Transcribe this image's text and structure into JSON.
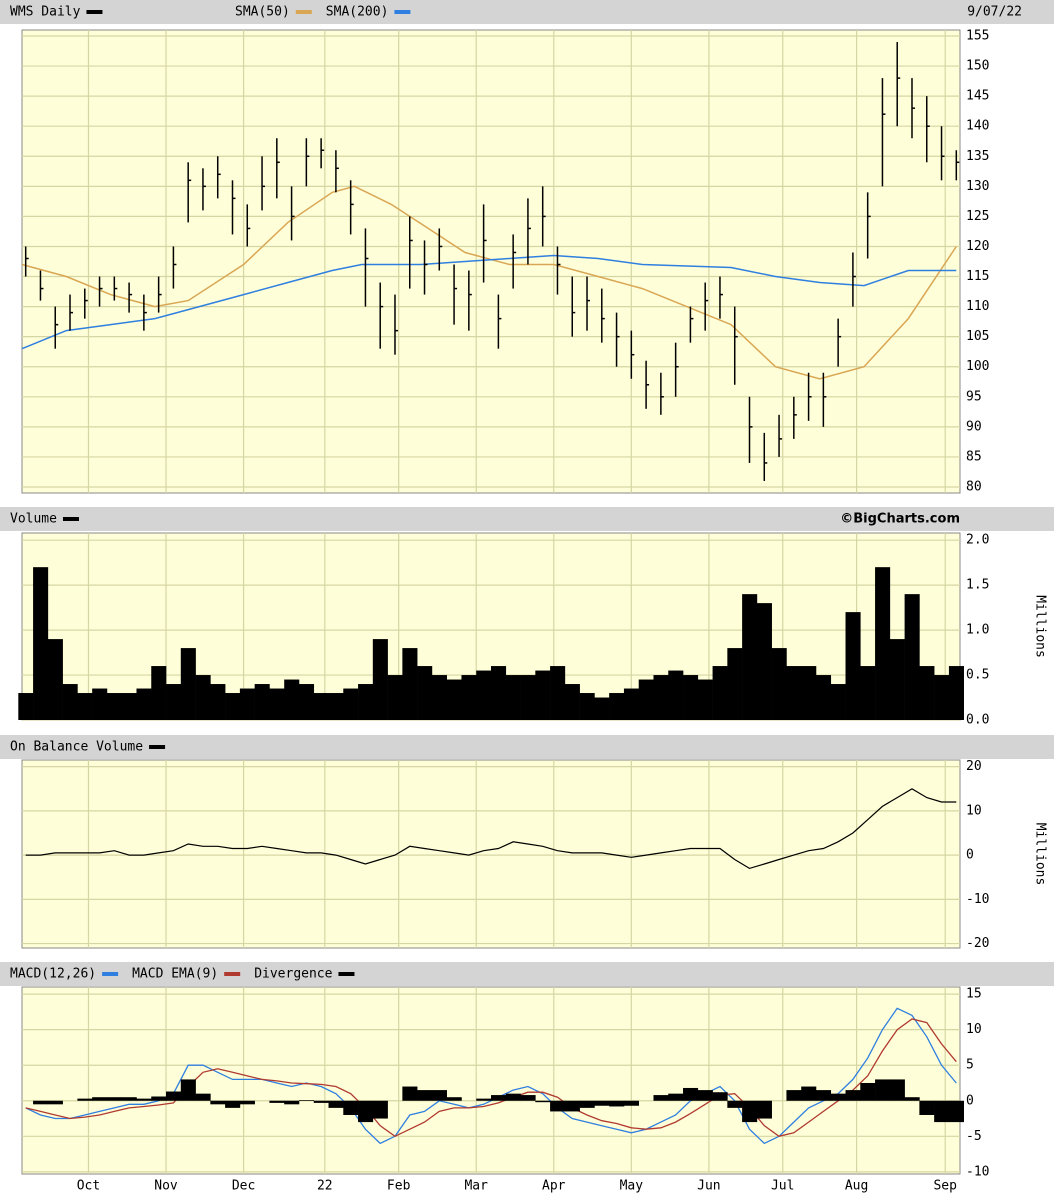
{
  "chart_data": [
    {
      "type": "ohlc",
      "title": "WMS Daily",
      "color": "#000000",
      "date": "9/07/22",
      "xlim": [
        0,
        254
      ],
      "xticks": [
        {
          "value": 18,
          "label": "Oct"
        },
        {
          "value": 39,
          "label": "Nov"
        },
        {
          "value": 60,
          "label": "Dec"
        },
        {
          "value": 82,
          "label": "22"
        },
        {
          "value": 102,
          "label": "Feb"
        },
        {
          "value": 123,
          "label": "Mar"
        },
        {
          "value": 144,
          "label": "Apr"
        },
        {
          "value": 165,
          "label": "May"
        },
        {
          "value": 186,
          "label": "Jun"
        },
        {
          "value": 206,
          "label": "Jul"
        },
        {
          "value": 226,
          "label": "Aug"
        },
        {
          "value": 250,
          "label": "Sep"
        }
      ],
      "ylim": [
        79,
        156
      ],
      "yticks": [
        80,
        85,
        90,
        95,
        100,
        105,
        110,
        115,
        120,
        125,
        130,
        135,
        140,
        145,
        150,
        155
      ],
      "x": [
        1,
        5,
        9,
        13,
        17,
        21,
        25,
        29,
        33,
        37,
        41,
        45,
        49,
        53,
        57,
        61,
        65,
        69,
        73,
        77,
        81,
        85,
        89,
        93,
        97,
        101,
        105,
        109,
        113,
        117,
        121,
        125,
        129,
        133,
        137,
        141,
        145,
        149,
        153,
        157,
        161,
        165,
        169,
        173,
        177,
        181,
        185,
        189,
        193,
        197,
        201,
        205,
        209,
        213,
        217,
        221,
        225,
        229,
        233,
        237,
        241,
        245,
        249,
        253
      ],
      "high": [
        120,
        116,
        110,
        112,
        113,
        115,
        115,
        114,
        112,
        115,
        120,
        134,
        133,
        135,
        131,
        127,
        135,
        138,
        130,
        138,
        138,
        136,
        131,
        123,
        114,
        112,
        125,
        121,
        123,
        117,
        116,
        127,
        112,
        122,
        128,
        130,
        120,
        115,
        115,
        113,
        109,
        106,
        101,
        99,
        104,
        110,
        114,
        115,
        110,
        95,
        89,
        92,
        95,
        99,
        99,
        108,
        119,
        129,
        148,
        154,
        148,
        145,
        140,
        136
      ],
      "low": [
        115,
        111,
        103,
        106,
        108,
        110,
        111,
        109,
        106,
        109,
        113,
        124,
        126,
        128,
        122,
        120,
        126,
        128,
        121,
        130,
        133,
        129,
        122,
        110,
        103,
        102,
        113,
        112,
        116,
        107,
        106,
        114,
        103,
        113,
        117,
        120,
        112,
        105,
        106,
        104,
        100,
        98,
        93,
        92,
        95,
        104,
        106,
        108,
        97,
        84,
        81,
        85,
        88,
        91,
        90,
        100,
        110,
        118,
        130,
        140,
        138,
        134,
        131,
        131
      ],
      "close": [
        118,
        113,
        107,
        109,
        111,
        113,
        113,
        112,
        109,
        112,
        117,
        131,
        130,
        132,
        128,
        123,
        130,
        134,
        125,
        135,
        136,
        133,
        127,
        118,
        110,
        106,
        121,
        117,
        120,
        113,
        112,
        121,
        108,
        119,
        123,
        125,
        117,
        109,
        111,
        108,
        105,
        102,
        97,
        95,
        100,
        108,
        111,
        112,
        105,
        90,
        84,
        88,
        92,
        95,
        95,
        105,
        115,
        125,
        142,
        148,
        143,
        140,
        135,
        134
      ],
      "series": [
        {
          "name": "SMA(50)",
          "color": "#d9a654",
          "x": [
            0,
            12,
            24,
            36,
            45,
            60,
            72,
            84,
            90,
            100,
            110,
            120,
            132,
            144,
            156,
            168,
            180,
            192,
            204,
            216,
            228,
            240,
            253
          ],
          "values": [
            117,
            115,
            112,
            110,
            111,
            117,
            124,
            129,
            130,
            127,
            123,
            119,
            117,
            117,
            115,
            113,
            110,
            107,
            100,
            98,
            100,
            108,
            120
          ]
        },
        {
          "name": "SMA(200)",
          "color": "#2f7fe0",
          "x": [
            0,
            12,
            24,
            36,
            48,
            60,
            72,
            84,
            92,
            108,
            132,
            144,
            156,
            168,
            192,
            204,
            216,
            228,
            240,
            253
          ],
          "values": [
            103,
            106,
            107,
            108,
            110,
            112,
            114,
            116,
            117,
            117,
            118,
            118.5,
            118,
            117,
            116.5,
            115,
            114,
            113.5,
            116,
            116
          ]
        }
      ]
    },
    {
      "type": "volume",
      "title": "Volume",
      "color": "#000000",
      "credit": "©BigCharts.com",
      "y_label": "Millions",
      "ylim": [
        0,
        2.08
      ],
      "yticks": [
        {
          "value": 0,
          "label": "0.0"
        },
        0.5,
        {
          "value": 1,
          "label": "1.0"
        },
        1.5,
        {
          "value": 2,
          "label": "2.0"
        }
      ],
      "x": [
        1,
        5,
        9,
        13,
        17,
        21,
        25,
        29,
        33,
        37,
        41,
        45,
        49,
        53,
        57,
        61,
        65,
        69,
        73,
        77,
        81,
        85,
        89,
        93,
        97,
        101,
        105,
        109,
        113,
        117,
        121,
        125,
        129,
        133,
        137,
        141,
        145,
        149,
        153,
        157,
        161,
        165,
        169,
        173,
        177,
        181,
        185,
        189,
        193,
        197,
        201,
        205,
        209,
        213,
        217,
        221,
        225,
        229,
        233,
        237,
        241,
        245,
        249,
        253
      ],
      "values": [
        0.3,
        1.7,
        0.9,
        0.4,
        0.3,
        0.35,
        0.3,
        0.3,
        0.35,
        0.6,
        0.4,
        0.8,
        0.5,
        0.4,
        0.3,
        0.35,
        0.4,
        0.35,
        0.45,
        0.4,
        0.3,
        0.3,
        0.35,
        0.4,
        0.9,
        0.5,
        0.8,
        0.6,
        0.5,
        0.45,
        0.5,
        0.55,
        0.6,
        0.5,
        0.5,
        0.55,
        0.6,
        0.4,
        0.3,
        0.25,
        0.3,
        0.35,
        0.45,
        0.5,
        0.55,
        0.5,
        0.45,
        0.6,
        0.8,
        1.4,
        1.3,
        0.8,
        0.6,
        0.6,
        0.5,
        0.4,
        1.2,
        0.6,
        1.7,
        0.9,
        1.4,
        0.6,
        0.5,
        0.6
      ]
    },
    {
      "type": "line",
      "title": "On Balance Volume",
      "color": "#000000",
      "y_label": "Millions",
      "ylim": [
        -21,
        21.5
      ],
      "yticks": [
        -20,
        -10,
        0,
        10,
        20
      ],
      "x": [
        1,
        5,
        9,
        13,
        17,
        21,
        25,
        29,
        33,
        37,
        41,
        45,
        49,
        53,
        57,
        61,
        65,
        69,
        73,
        77,
        81,
        85,
        89,
        93,
        97,
        101,
        105,
        109,
        113,
        117,
        121,
        125,
        129,
        133,
        137,
        141,
        145,
        149,
        153,
        157,
        161,
        165,
        169,
        173,
        177,
        181,
        185,
        189,
        193,
        197,
        201,
        205,
        209,
        213,
        217,
        221,
        225,
        229,
        233,
        237,
        241,
        245,
        249,
        253
      ],
      "values": [
        0,
        0,
        0.5,
        0.5,
        0.5,
        0.5,
        1,
        0,
        0,
        0.5,
        1,
        2.5,
        2,
        2,
        1.5,
        1.5,
        2,
        1.5,
        1,
        0.5,
        0.5,
        0,
        -1,
        -2,
        -1,
        0,
        2,
        1.5,
        1,
        0.5,
        0,
        1,
        1.5,
        3,
        2.5,
        2,
        1,
        0.5,
        0.5,
        0.5,
        0,
        -0.5,
        0,
        0.5,
        1,
        1.5,
        1.5,
        1.5,
        -1,
        -3,
        -2,
        -1,
        0,
        1,
        1.5,
        3,
        5,
        8,
        11,
        13,
        15,
        13,
        12,
        12
      ]
    },
    {
      "type": "macd",
      "title": "MACD(12,26)",
      "ylim": [
        -10.3,
        16
      ],
      "yticks": [
        -10,
        -5,
        0,
        5,
        10,
        15
      ],
      "x": [
        1,
        5,
        9,
        13,
        17,
        21,
        25,
        29,
        33,
        37,
        41,
        45,
        49,
        53,
        57,
        61,
        65,
        69,
        73,
        77,
        81,
        85,
        89,
        93,
        97,
        101,
        105,
        109,
        113,
        117,
        121,
        125,
        129,
        133,
        137,
        141,
        145,
        149,
        153,
        157,
        161,
        165,
        169,
        173,
        177,
        181,
        185,
        189,
        193,
        197,
        201,
        205,
        209,
        213,
        217,
        221,
        225,
        229,
        233,
        237,
        241,
        245,
        249,
        253
      ],
      "series": [
        {
          "name": "MACD(12,26)",
          "color": "#2f7fe0",
          "values": [
            -1,
            -2,
            -2.5,
            -2.5,
            -2,
            -1.5,
            -1,
            -0.5,
            -0.5,
            0,
            1,
            5,
            5,
            4,
            3,
            3,
            3,
            2.5,
            2,
            2.5,
            2,
            1,
            -1,
            -4,
            -6,
            -5,
            -2,
            -1.5,
            0,
            -0.5,
            -1,
            -0.5,
            0.5,
            1.5,
            2,
            1,
            -1,
            -2.5,
            -3,
            -3.5,
            -4,
            -4.5,
            -4,
            -3,
            -2,
            0,
            1,
            2,
            0,
            -4,
            -6,
            -5,
            -3,
            -1,
            0,
            1,
            3,
            6,
            10,
            13,
            12,
            9,
            5,
            2.5
          ]
        },
        {
          "name": "MACD EMA(9)",
          "color": "#b03a30",
          "values": [
            -1,
            -1.5,
            -2,
            -2.5,
            -2.3,
            -2,
            -1.5,
            -1,
            -0.8,
            -0.6,
            -0.3,
            2,
            4,
            4.5,
            4,
            3.5,
            3,
            2.8,
            2.5,
            2.4,
            2.3,
            2,
            1,
            -1,
            -3.5,
            -5,
            -4,
            -3,
            -1.5,
            -1,
            -1,
            -0.8,
            -0.3,
            0.5,
            1.2,
            1.2,
            0.5,
            -1,
            -2,
            -2.8,
            -3.2,
            -3.8,
            -4,
            -3.8,
            -3,
            -1.8,
            -0.5,
            0.8,
            1,
            -1,
            -3.5,
            -5,
            -4.5,
            -3,
            -1.5,
            0,
            1.5,
            3.5,
            7,
            10,
            11.5,
            11,
            8,
            5.5
          ]
        },
        {
          "name": "Divergence",
          "color": "#000000",
          "type": "bar",
          "values": [
            0,
            -0.5,
            -0.5,
            0,
            0.3,
            0.5,
            0.5,
            0.5,
            0.3,
            0.6,
            1.3,
            3,
            1,
            -0.5,
            -1,
            -0.5,
            0,
            -0.3,
            -0.5,
            0.1,
            -0.3,
            -1,
            -2,
            -3,
            -2.5,
            0,
            2,
            1.5,
            1.5,
            0.5,
            0,
            0.3,
            0.8,
            1,
            0.8,
            -0.2,
            -1.5,
            -1.5,
            -1,
            -0.7,
            -0.8,
            -0.7,
            0,
            0.8,
            1,
            1.8,
            1.5,
            1.2,
            -1,
            -3,
            -2.5,
            0,
            1.5,
            2,
            1.5,
            1,
            1.5,
            2.5,
            3,
            3,
            0.5,
            -2,
            -3,
            -3
          ]
        }
      ]
    }
  ]
}
